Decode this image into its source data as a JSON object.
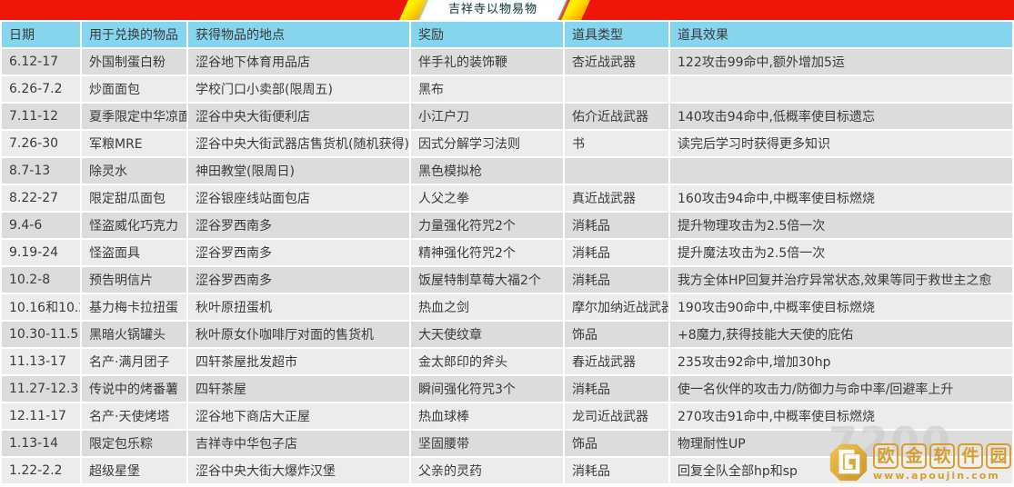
{
  "banner": {
    "title": "吉祥寺以物易物"
  },
  "colors": {
    "banner_red": "#ee1509",
    "banner_stripe_yellow": "#ffd400",
    "header_blue": "#86d5ef",
    "date_column_cyan": "#55c9f0",
    "row_dark": "#dcdcdc",
    "row_light": "#ececec",
    "watermark_gold": "#d79b23"
  },
  "table": {
    "columns": [
      {
        "key": "date",
        "label": "日期"
      },
      {
        "key": "item",
        "label": "用于兑换的物品"
      },
      {
        "key": "location",
        "label": "获得物品的地点"
      },
      {
        "key": "reward",
        "label": "奖励"
      },
      {
        "key": "type",
        "label": "道具类型"
      },
      {
        "key": "effect",
        "label": "道具效果"
      }
    ],
    "rows": [
      {
        "date": "6.12-17",
        "item": "外国制蛋白粉",
        "location": "涩谷地下体育用品店",
        "reward": "伴手礼的装饰鞭",
        "type": "杏近战武器",
        "effect": "122攻击99命中,额外增加5运"
      },
      {
        "date": "6.26-7.2",
        "item": "炒面面包",
        "location": "学校门口小卖部(限周五)",
        "reward": "黑布",
        "type": "",
        "effect": ""
      },
      {
        "date": "7.11-12",
        "item": "夏季限定中华凉面",
        "location": "涩谷中央大街便利店",
        "reward": "小江户刀",
        "type": "佑介近战武器",
        "effect": "140攻击94命中,低概率使目标遗忘"
      },
      {
        "date": "7.26-30",
        "item": "军粮MRE",
        "location": "涩谷中央大街武器店售货机(随机获得)",
        "reward": "因式分解学习法则",
        "type": "书",
        "effect": "读完后学习时获得更多知识"
      },
      {
        "date": "8.7-13",
        "item": "除灵水",
        "location": "神田教堂(限周日)",
        "reward": "黑色模拟枪",
        "type": "",
        "effect": ""
      },
      {
        "date": "8.22-27",
        "item": "限定甜瓜面包",
        "location": "涩谷银座线站面包店",
        "reward": "人父之拳",
        "type": "真近战武器",
        "effect": "160攻击94命中,中概率使目标燃烧"
      },
      {
        "date": "9.4-6",
        "item": "怪盗威化巧克力",
        "location": "涩谷罗西南多",
        "reward": "力量强化符咒2个",
        "type": "消耗品",
        "effect": "提升物理攻击为2.5倍一次"
      },
      {
        "date": "9.19-24",
        "item": "怪盗面具",
        "location": "涩谷罗西南多",
        "reward": "精神强化符咒2个",
        "type": "消耗品",
        "effect": "提升魔法攻击为2.5倍一次"
      },
      {
        "date": "10.2-8",
        "item": "预告明信片",
        "location": "涩谷罗西南多",
        "reward": "饭屋特制草莓大福2个",
        "type": "消耗品",
        "effect": "我方全体HP回复并治疗异常状态,效果等同于救世主之愈"
      },
      {
        "date": "10.16和10.22",
        "item": "基力梅卡拉扭蛋",
        "location": "秋叶原扭蛋机",
        "reward": "热血之剑",
        "type": "摩尔加纳近战武器",
        "effect": "190攻击90命中,中概率使目标燃烧"
      },
      {
        "date": "10.30-11.5",
        "item": "黑暗火锅罐头",
        "location": "秋叶原女仆咖啡厅对面的售货机",
        "reward": "大天使纹章",
        "type": "饰品",
        "effect": "+8魔力,获得技能大天使的庇佑"
      },
      {
        "date": "11.13-17",
        "item": "名产·满月团子",
        "location": "四轩茶屋批发超市",
        "reward": "金太郎印的斧头",
        "type": "春近战武器",
        "effect": "235攻击92命中,增加30hp"
      },
      {
        "date": "11.27-12.3",
        "item": "传说中的烤番薯",
        "location": "四轩茶屋",
        "reward": "瞬间强化符咒3个",
        "type": "消耗品",
        "effect": "使一名伙伴的攻击力/防御力与命中率/回避率上升"
      },
      {
        "date": "12.11-17",
        "item": "名产·天使烤塔",
        "location": "涩谷地下商店大正屋",
        "reward": "热血球棒",
        "type": "龙司近战武器",
        "effect": "270攻击91命中,中概率使目标燃烧"
      },
      {
        "date": "1.13-14",
        "item": "限定包乐粽",
        "location": "吉祥寺中华包子店",
        "reward": "坚固腰带",
        "type": "饰品",
        "effect": "物理耐性UP"
      },
      {
        "date": "1.22-2.2",
        "item": "超级星堡",
        "location": "涩谷中央大街大爆炸汉堡",
        "reward": "父亲的灵药",
        "type": "消耗品",
        "effect": "回复全队全部hp和sp"
      }
    ]
  },
  "watermark": {
    "site_name": "欧金软件园",
    "site_url": "www.apoujin.com",
    "badge_number": "7200"
  }
}
